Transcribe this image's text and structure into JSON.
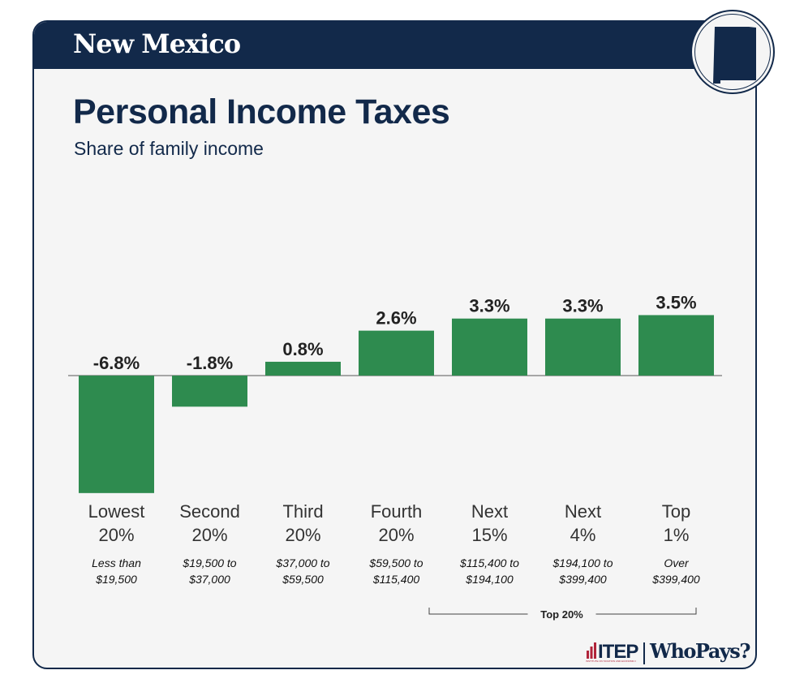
{
  "header": {
    "state_name": "New Mexico"
  },
  "branding": {
    "org": "ITEP",
    "org_tagline": "INSTITUTE ON TAXATION AND ECONOMIC POLICY",
    "product": "WhoPays?"
  },
  "colors": {
    "navy": "#12294a",
    "bar": "#2e8b4f",
    "background": "#f5f5f5",
    "itep_red": "#b0243a"
  },
  "chart_data": {
    "type": "bar",
    "title": "Personal Income Taxes",
    "subtitle": "Share of family income",
    "ylim": [
      -6.8,
      3.5
    ],
    "categories": [
      {
        "group": [
          "Lowest",
          "20%"
        ],
        "range": [
          "Less than",
          "$19,500"
        ]
      },
      {
        "group": [
          "Second",
          "20%"
        ],
        "range": [
          "$19,500 to",
          "$37,000"
        ]
      },
      {
        "group": [
          "Third",
          "20%"
        ],
        "range": [
          "$37,000 to",
          "$59,500"
        ]
      },
      {
        "group": [
          "Fourth",
          "20%"
        ],
        "range": [
          "$59,500 to",
          "$115,400"
        ]
      },
      {
        "group": [
          "Next",
          "15%"
        ],
        "range": [
          "$115,400 to",
          "$194,100"
        ]
      },
      {
        "group": [
          "Next",
          "4%"
        ],
        "range": [
          "$194,100 to",
          "$399,400"
        ]
      },
      {
        "group": [
          "Top",
          "1%"
        ],
        "range": [
          "Over",
          "$399,400"
        ]
      }
    ],
    "values": [
      -6.8,
      -1.8,
      0.8,
      2.6,
      3.3,
      3.3,
      3.5
    ],
    "value_labels": [
      "-6.8%",
      "-1.8%",
      "0.8%",
      "2.6%",
      "3.3%",
      "3.3%",
      "3.5%"
    ],
    "bracket": {
      "label": "Top 20%",
      "from_index": 4,
      "to_index": 6
    }
  }
}
